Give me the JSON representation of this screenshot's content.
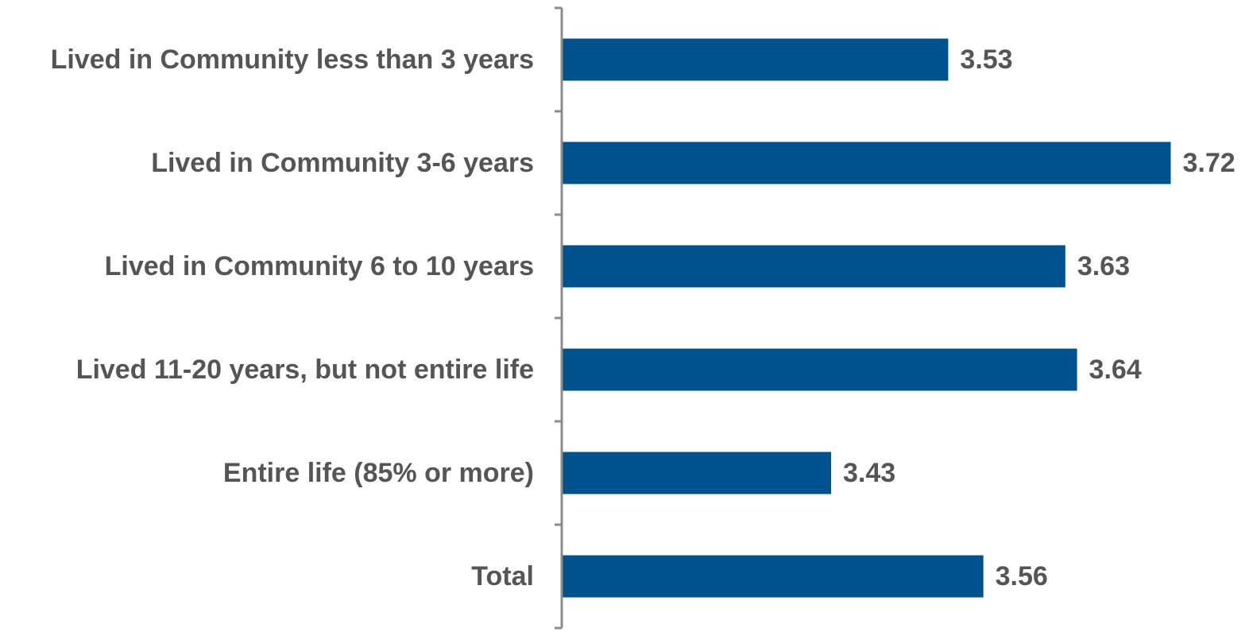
{
  "chart_data": {
    "type": "bar",
    "orientation": "horizontal",
    "categories": [
      "Lived in Community less than 3 years",
      "Lived in Community 3-6 years",
      "Lived in Community 6 to 10 years",
      "Lived 11-20 years, but not entire life",
      "Entire life (85% or more)",
      "Total"
    ],
    "values": [
      3.53,
      3.72,
      3.63,
      3.64,
      3.43,
      3.56
    ],
    "value_labels": [
      "3.53",
      "3.72",
      "3.63",
      "3.64",
      "3.43",
      "3.56"
    ],
    "bar_color": "#00528f",
    "label_color": "#555555",
    "axis_color": "#8c8c8c",
    "grid": false
  }
}
